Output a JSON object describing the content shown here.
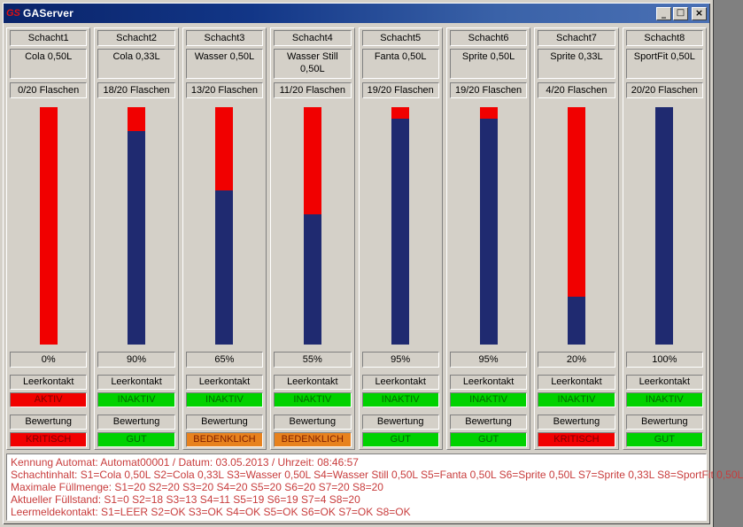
{
  "window": {
    "title": "GAServer",
    "icon_text": "GS",
    "controls": {
      "minimize": "_",
      "maximize": "□",
      "close": "×"
    }
  },
  "labels": {
    "leerkontakt": "Leerkontakt",
    "bewertung": "Bewertung"
  },
  "columns": [
    {
      "name": "Schacht1",
      "drink": "Cola 0,50L",
      "bottles": "0/20 Flaschen",
      "percent": "0%",
      "fill_percent": 0,
      "leerkontakt_status": "AKTIV",
      "leerkontakt_type": "red",
      "bewertung_status": "KRITISCH",
      "bewertung_type": "red"
    },
    {
      "name": "Schacht2",
      "drink": "Cola 0,33L",
      "bottles": "18/20 Flaschen",
      "percent": "90%",
      "fill_percent": 90,
      "leerkontakt_status": "INAKTIV",
      "leerkontakt_type": "green",
      "bewertung_status": "GUT",
      "bewertung_type": "green"
    },
    {
      "name": "Schacht3",
      "drink": "Wasser 0,50L",
      "bottles": "13/20 Flaschen",
      "percent": "65%",
      "fill_percent": 65,
      "leerkontakt_status": "INAKTIV",
      "leerkontakt_type": "green",
      "bewertung_status": "BEDENKLICH",
      "bewertung_type": "orange"
    },
    {
      "name": "Schacht4",
      "drink": "Wasser Still 0,50L",
      "bottles": "11/20 Flaschen",
      "percent": "55%",
      "fill_percent": 55,
      "leerkontakt_status": "INAKTIV",
      "leerkontakt_type": "green",
      "bewertung_status": "BEDENKLICH",
      "bewertung_type": "orange"
    },
    {
      "name": "Schacht5",
      "drink": "Fanta 0,50L",
      "bottles": "19/20 Flaschen",
      "percent": "95%",
      "fill_percent": 95,
      "leerkontakt_status": "INAKTIV",
      "leerkontakt_type": "green",
      "bewertung_status": "GUT",
      "bewertung_type": "green"
    },
    {
      "name": "Schacht6",
      "drink": "Sprite 0,50L",
      "bottles": "19/20 Flaschen",
      "percent": "95%",
      "fill_percent": 95,
      "leerkontakt_status": "INAKTIV",
      "leerkontakt_type": "green",
      "bewertung_status": "GUT",
      "bewertung_type": "green"
    },
    {
      "name": "Schacht7",
      "drink": "Sprite 0,33L",
      "bottles": "4/20 Flaschen",
      "percent": "20%",
      "fill_percent": 20,
      "leerkontakt_status": "INAKTIV",
      "leerkontakt_type": "green",
      "bewertung_status": "KRITISCH",
      "bewertung_type": "red"
    },
    {
      "name": "Schacht8",
      "drink": "SportFit 0,50L",
      "bottles": "20/20 Flaschen",
      "percent": "100%",
      "fill_percent": 100,
      "leerkontakt_status": "INAKTIV",
      "leerkontakt_type": "green",
      "bewertung_status": "GUT",
      "bewertung_type": "green"
    }
  ],
  "status_colors": {
    "red": {
      "bg": "#f10000",
      "fg": "#7e0000"
    },
    "green": {
      "bg": "#00d200",
      "fg": "#006a00"
    },
    "orange": {
      "bg": "#e8821e",
      "fg": "#7e1e00"
    }
  },
  "colors": {
    "bar_empty": "#f10000",
    "bar_fill": "#1f2a70",
    "footer_text": "#c83c3c",
    "titlebar_left": "#0a246a",
    "titlebar_right": "#4a70b4"
  },
  "footer": {
    "lines": [
      "Kennung Automat: Automat00001 / Datum: 03.05.2013 / Uhrzeit: 08:46:57",
      "Schachtinhalt: S1=Cola 0,50L S2=Cola 0,33L S3=Wasser 0,50L S4=Wasser Still 0,50L S5=Fanta 0,50L S6=Sprite 0,50L S7=Sprite 0,33L S8=SportFit 0,50L",
      "Maximale Füllmenge: S1=20 S2=20 S3=20 S4=20 S5=20 S6=20 S7=20 S8=20",
      "Aktueller Füllstand: S1=0 S2=18 S3=13 S4=11 S5=19 S6=19 S7=4 S8=20",
      "Leermeldekontakt: S1=LEER S2=OK S3=OK S4=OK S5=OK S6=OK S7=OK S8=OK"
    ]
  }
}
